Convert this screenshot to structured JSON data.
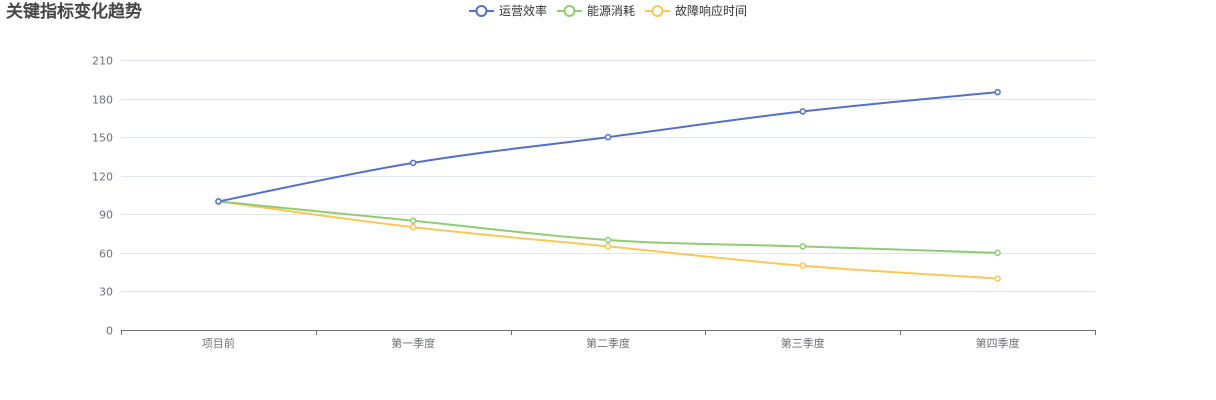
{
  "chart_data": {
    "type": "line",
    "title": "关键指标变化趋势",
    "categories": [
      "项目前",
      "第一季度",
      "第二季度",
      "第三季度",
      "第四季度"
    ],
    "series": [
      {
        "name": "运营效率",
        "values": [
          100,
          130,
          150,
          170,
          185
        ],
        "color": "#5470c6"
      },
      {
        "name": "能源消耗",
        "values": [
          100,
          85,
          70,
          65,
          60
        ],
        "color": "#91cc75"
      },
      {
        "name": "故障响应时间",
        "values": [
          100,
          80,
          65,
          50,
          40
        ],
        "color": "#fac858"
      }
    ],
    "y_ticks": [
      0,
      30,
      60,
      90,
      120,
      150,
      180,
      210
    ],
    "ylim": [
      0,
      210
    ],
    "xlabel": "",
    "ylabel": "",
    "grid": true,
    "smooth": true,
    "legend_position": "top-center"
  }
}
